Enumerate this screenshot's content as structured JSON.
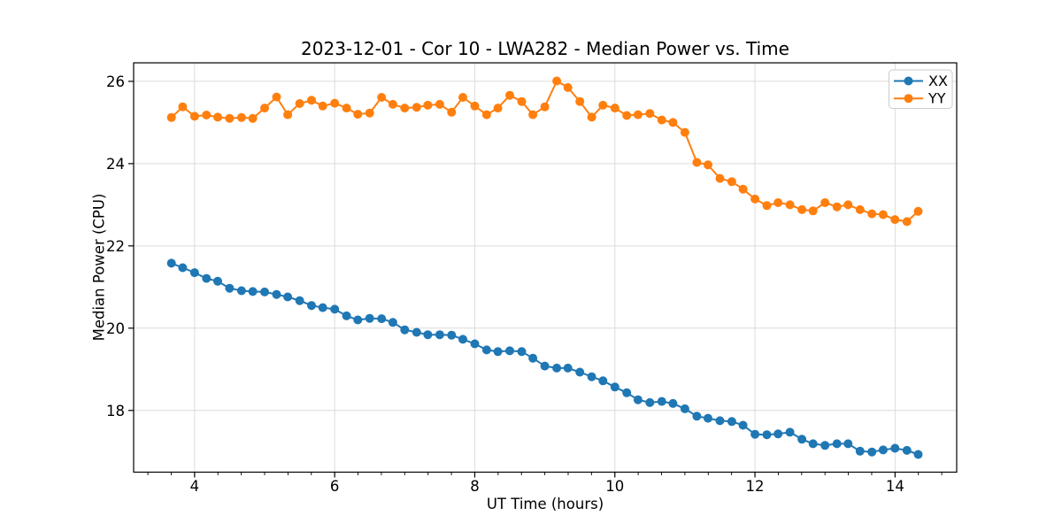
{
  "figure": {
    "background": "#ffffff"
  },
  "chart_data": {
    "type": "line",
    "title": "2023-12-01 - Cor 10 - LWA282 - Median Power vs. Time",
    "xlabel": "UT Time (hours)",
    "ylabel": "Median Power (CPU)",
    "xlim": [
      3.13,
      14.88
    ],
    "ylim": [
      16.5,
      26.45
    ],
    "x_ticks": [
      4,
      6,
      8,
      10,
      12,
      14
    ],
    "y_ticks": [
      18,
      20,
      22,
      24,
      26
    ],
    "x_minor_tick_step": 0.33333,
    "grid": true,
    "grid_color": "#dcdcdc",
    "spine_color": "#000000",
    "tick_label_color": "#000000",
    "legend_position": "upper right",
    "marker": "circle",
    "marker_size": 5,
    "line_width": 2,
    "x": [
      3.67,
      3.83,
      4.0,
      4.17,
      4.33,
      4.5,
      4.67,
      4.83,
      5.0,
      5.17,
      5.33,
      5.5,
      5.67,
      5.83,
      6.0,
      6.17,
      6.33,
      6.5,
      6.67,
      6.83,
      7.0,
      7.17,
      7.33,
      7.5,
      7.67,
      7.83,
      8.0,
      8.17,
      8.33,
      8.5,
      8.67,
      8.83,
      9.0,
      9.17,
      9.33,
      9.5,
      9.67,
      9.83,
      10.0,
      10.17,
      10.33,
      10.5,
      10.67,
      10.83,
      11.0,
      11.17,
      11.33,
      11.5,
      11.67,
      11.83,
      12.0,
      12.17,
      12.33,
      12.5,
      12.67,
      12.83,
      13.0,
      13.17,
      13.33,
      13.5,
      13.67,
      13.83,
      14.0,
      14.17,
      14.33
    ],
    "series": [
      {
        "name": "XX",
        "color": "#1f77b4",
        "values": [
          21.58,
          21.47,
          21.35,
          21.21,
          21.14,
          20.97,
          20.91,
          20.89,
          20.88,
          20.82,
          20.76,
          20.67,
          20.55,
          20.5,
          20.46,
          20.3,
          20.2,
          20.24,
          20.23,
          20.14,
          19.96,
          19.9,
          19.84,
          19.84,
          19.83,
          19.73,
          19.62,
          19.47,
          19.43,
          19.45,
          19.43,
          19.27,
          19.08,
          19.03,
          19.03,
          18.93,
          18.82,
          18.72,
          18.57,
          18.43,
          18.26,
          18.19,
          18.22,
          18.17,
          18.04,
          17.86,
          17.81,
          17.75,
          17.73,
          17.64,
          17.42,
          17.41,
          17.43,
          17.47,
          17.3,
          17.19,
          17.15,
          17.19,
          17.19,
          17.01,
          16.99,
          17.04,
          17.08,
          17.03,
          16.93
        ]
      },
      {
        "name": "YY",
        "color": "#ff7f0e",
        "values": [
          25.12,
          25.38,
          25.15,
          25.18,
          25.13,
          25.1,
          25.12,
          25.1,
          25.35,
          25.62,
          25.19,
          25.46,
          25.54,
          25.4,
          25.47,
          25.35,
          25.2,
          25.23,
          25.61,
          25.44,
          25.35,
          25.37,
          25.42,
          25.44,
          25.25,
          25.61,
          25.4,
          25.19,
          25.35,
          25.66,
          25.51,
          25.19,
          25.38,
          26.01,
          25.85,
          25.51,
          25.13,
          25.42,
          25.35,
          25.17,
          25.19,
          25.22,
          25.06,
          25.0,
          24.76,
          24.03,
          23.97,
          23.64,
          23.56,
          23.38,
          23.14,
          22.98,
          23.05,
          23.0,
          22.88,
          22.85,
          23.05,
          22.95,
          23.0,
          22.88,
          22.78,
          22.76,
          22.64,
          22.59,
          22.84
        ]
      }
    ],
    "legend": {
      "labels": [
        "XX",
        "YY"
      ]
    }
  }
}
